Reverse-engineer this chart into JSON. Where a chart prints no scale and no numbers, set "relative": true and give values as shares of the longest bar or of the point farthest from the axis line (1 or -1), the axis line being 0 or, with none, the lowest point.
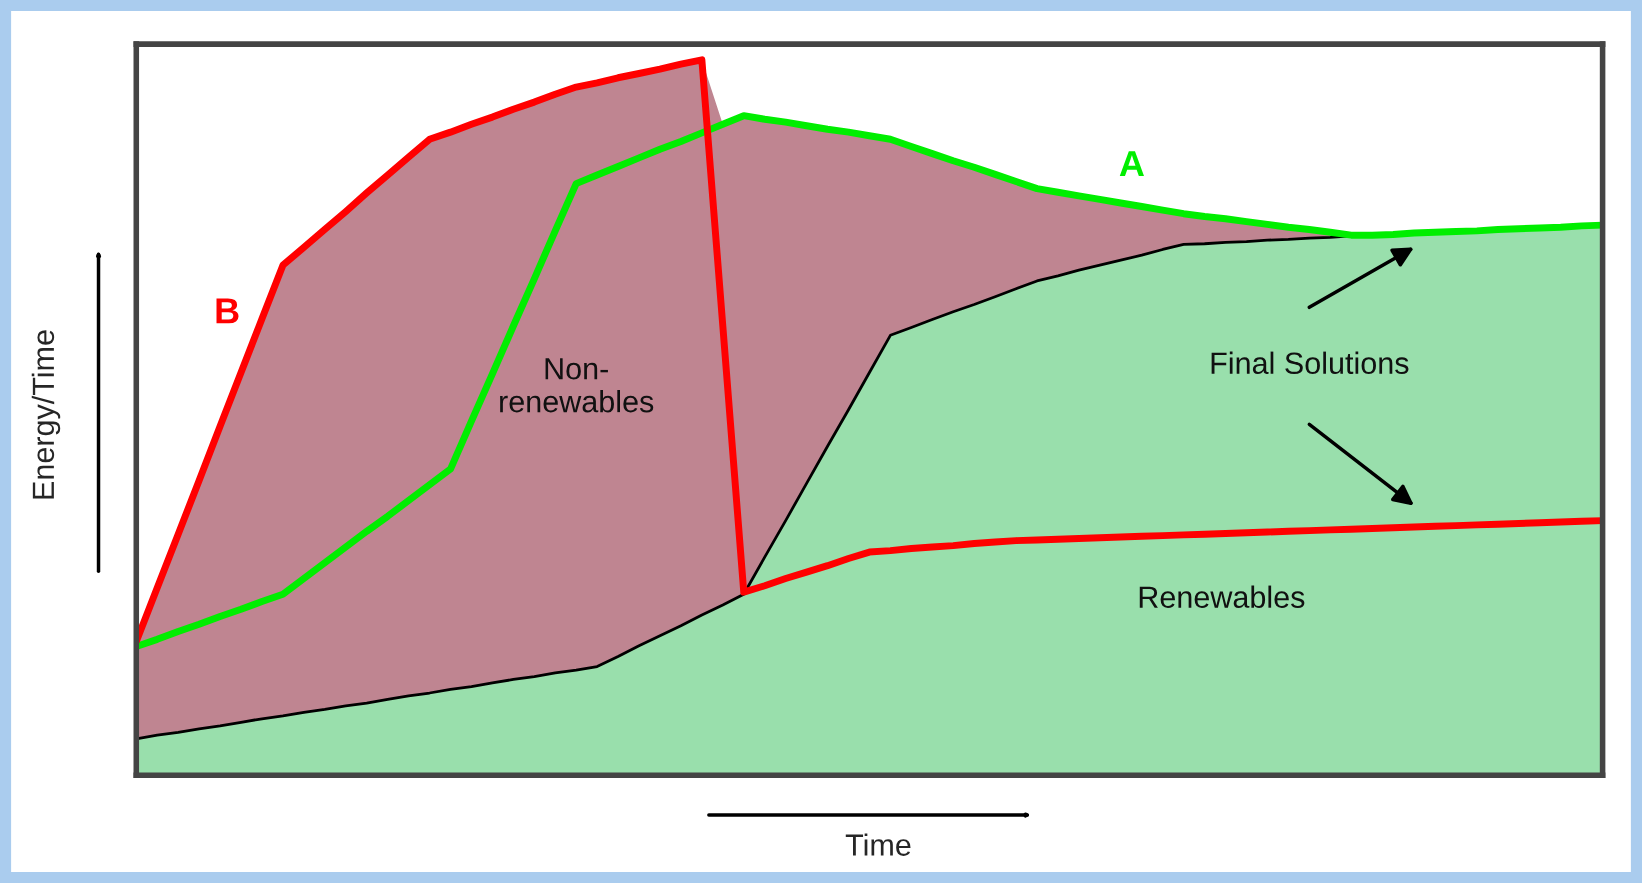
{
  "chart_data": {
    "type": "line",
    "relative": true,
    "xlabel": "Time",
    "ylabel": "Energy/Time",
    "tick_labels": false,
    "categories": [
      null,
      null,
      null,
      null,
      null,
      null,
      null,
      null,
      null,
      null,
      null,
      null,
      null,
      null,
      null,
      null,
      null,
      null,
      null,
      null,
      null,
      null,
      null,
      null,
      null,
      null,
      null,
      null,
      null,
      null,
      null,
      null,
      null,
      null,
      null,
      null,
      null,
      null,
      null,
      null,
      null,
      null,
      null,
      null,
      null,
      null,
      null,
      null,
      null,
      null,
      null,
      null,
      null,
      null,
      null,
      null,
      null,
      null,
      null,
      null,
      null,
      null,
      null,
      null,
      null,
      null,
      null,
      null,
      null,
      null,
      null
    ],
    "series": [
      {
        "type": "area",
        "color": "#bf8591",
        "values": [
          0.187,
          0.262,
          0.337,
          0.412,
          0.488,
          0.563,
          0.638,
          0.713,
          0.738,
          0.763,
          0.788,
          0.814,
          0.839,
          0.864,
          0.889,
          0.899,
          0.91,
          0.92,
          0.931,
          0.941,
          0.952,
          0.962,
          0.968,
          0.975,
          0.981,
          0.987,
          0.994,
          1.0,
          0.91,
          0.922,
          0.917,
          0.913,
          0.908,
          0.903,
          0.899,
          0.894,
          0.889,
          0.879,
          0.869,
          0.859,
          0.85,
          0.84,
          0.83,
          0.82,
          0.815,
          0.81,
          0.805,
          0.8,
          0.795,
          0.79,
          0.785,
          0.781,
          0.778,
          0.774,
          0.77,
          0.766,
          0.763,
          0.759,
          0.755,
          0.755,
          0.756,
          0.758,
          0.759,
          0.76,
          0.761,
          0.763,
          0.764,
          0.765,
          0.766,
          0.768,
          0.769
        ]
      },
      {
        "type": "area",
        "color": "#99dfac",
        "values": [
          0.051,
          0.056,
          0.06,
          0.065,
          0.069,
          0.074,
          0.079,
          0.083,
          0.088,
          0.092,
          0.097,
          0.101,
          0.106,
          0.111,
          0.115,
          0.12,
          0.124,
          0.129,
          0.134,
          0.138,
          0.143,
          0.147,
          0.152,
          0.166,
          0.181,
          0.195,
          0.209,
          0.224,
          0.238,
          0.253,
          0.305,
          0.356,
          0.408,
          0.46,
          0.511,
          0.563,
          0.615,
          0.626,
          0.637,
          0.648,
          0.658,
          0.669,
          0.68,
          0.691,
          0.698,
          0.706,
          0.713,
          0.72,
          0.727,
          0.735,
          0.742,
          0.743,
          0.745,
          0.746,
          0.748,
          0.749,
          0.751,
          0.752,
          0.754,
          0.755,
          0.756,
          0.758,
          0.759,
          0.76,
          0.761,
          0.763,
          0.764,
          0.765,
          0.766,
          0.768,
          0.769
        ]
      },
      {
        "type": "line",
        "name": "A",
        "color": "#00ee00",
        "values": [
          0.18,
          0.19,
          0.201,
          0.211,
          0.222,
          0.232,
          0.243,
          0.253,
          0.275,
          0.297,
          0.319,
          0.341,
          0.362,
          0.384,
          0.406,
          0.428,
          0.495,
          0.561,
          0.628,
          0.694,
          0.761,
          0.827,
          0.839,
          0.851,
          0.863,
          0.875,
          0.886,
          0.898,
          0.91,
          0.922,
          0.917,
          0.913,
          0.908,
          0.903,
          0.899,
          0.894,
          0.889,
          0.879,
          0.869,
          0.859,
          0.85,
          0.84,
          0.83,
          0.82,
          0.815,
          0.81,
          0.805,
          0.8,
          0.795,
          0.79,
          0.785,
          0.781,
          0.778,
          0.774,
          0.77,
          0.766,
          0.763,
          0.759,
          0.755,
          0.755,
          0.756,
          0.758,
          0.759,
          0.76,
          0.761,
          0.763,
          0.764,
          0.765,
          0.766,
          0.768,
          0.769
        ]
      },
      {
        "type": "line",
        "name": "B",
        "color": "#ff0000",
        "values": [
          0.187,
          0.262,
          0.337,
          0.412,
          0.488,
          0.563,
          0.638,
          0.713,
          0.738,
          0.763,
          0.788,
          0.814,
          0.839,
          0.864,
          0.889,
          0.899,
          0.91,
          0.92,
          0.931,
          0.941,
          0.952,
          0.962,
          0.968,
          0.975,
          0.981,
          0.987,
          0.994,
          1.0,
          0.628,
          0.256,
          0.265,
          0.275,
          0.284,
          0.293,
          0.303,
          0.312,
          0.314,
          0.317,
          0.319,
          0.321,
          0.324,
          0.326,
          0.328,
          0.329,
          0.33,
          0.331,
          0.332,
          0.333,
          0.334,
          0.335,
          0.336,
          0.337,
          0.338,
          0.339,
          0.34,
          0.341,
          0.342,
          0.343,
          0.344,
          0.345,
          0.346,
          0.347,
          0.348,
          0.349,
          0.35,
          0.351,
          0.352,
          0.353,
          0.354,
          0.355,
          0.356
        ]
      }
    ],
    "annotations": [
      "Non-\nrenewables",
      "Renewables",
      "Final Solutions"
    ]
  }
}
